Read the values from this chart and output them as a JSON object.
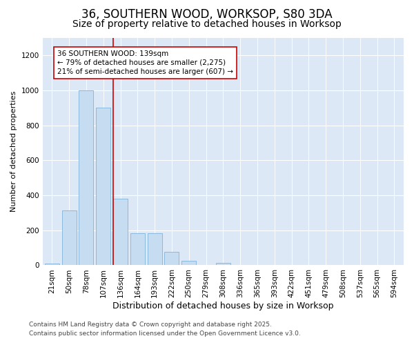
{
  "title1": "36, SOUTHERN WOOD, WORKSOP, S80 3DA",
  "title2": "Size of property relative to detached houses in Worksop",
  "xlabel": "Distribution of detached houses by size in Worksop",
  "ylabel": "Number of detached properties",
  "categories": [
    "21sqm",
    "50sqm",
    "78sqm",
    "107sqm",
    "136sqm",
    "164sqm",
    "193sqm",
    "222sqm",
    "250sqm",
    "279sqm",
    "308sqm",
    "336sqm",
    "365sqm",
    "393sqm",
    "422sqm",
    "451sqm",
    "479sqm",
    "508sqm",
    "537sqm",
    "565sqm",
    "594sqm"
  ],
  "values": [
    10,
    315,
    1000,
    900,
    380,
    185,
    185,
    75,
    25,
    0,
    15,
    0,
    0,
    0,
    0,
    0,
    0,
    0,
    0,
    0,
    0
  ],
  "bar_color": "#c6dcf0",
  "bar_edge_color": "#7fb3d8",
  "vline_x": 4,
  "vline_color": "#cc0000",
  "annotation_text": "36 SOUTHERN WOOD: 139sqm\n← 79% of detached houses are smaller (2,275)\n21% of semi-detached houses are larger (607) →",
  "annotation_box_facecolor": "#ffffff",
  "annotation_box_edgecolor": "#cc0000",
  "ylim": [
    0,
    1300
  ],
  "yticks": [
    0,
    200,
    400,
    600,
    800,
    1000,
    1200
  ],
  "fig_facecolor": "#ffffff",
  "plot_facecolor": "#dce8f5",
  "footer1": "Contains HM Land Registry data © Crown copyright and database right 2025.",
  "footer2": "Contains public sector information licensed under the Open Government Licence v3.0.",
  "title1_fontsize": 12,
  "title2_fontsize": 10,
  "tick_fontsize": 7.5,
  "xlabel_fontsize": 9,
  "ylabel_fontsize": 8,
  "footer_fontsize": 6.5,
  "annotation_fontsize": 7.5
}
